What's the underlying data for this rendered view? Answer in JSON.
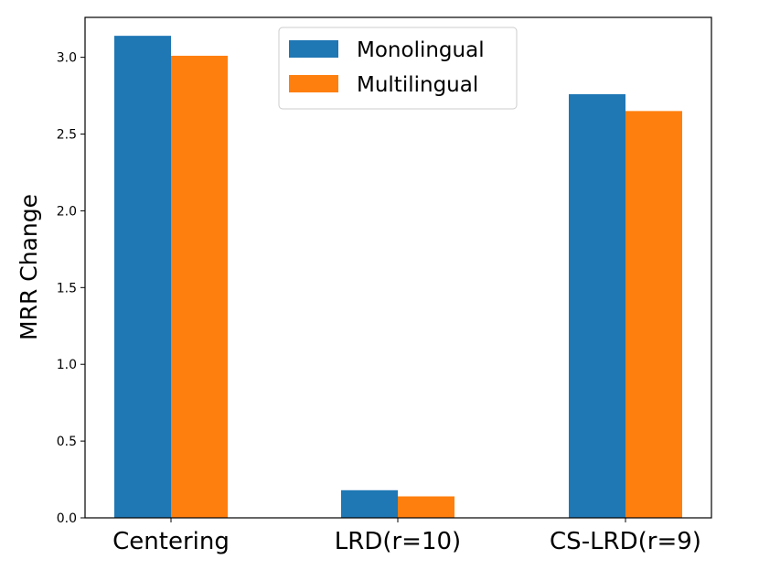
{
  "chart_data": {
    "type": "bar",
    "categories": [
      "Centering",
      "LRD(r=10)",
      "CS-LRD(r=9)"
    ],
    "series": [
      {
        "name": "Monolingual",
        "color": "#1f77b4",
        "values": [
          3.14,
          0.18,
          2.76
        ]
      },
      {
        "name": "Multilingual",
        "color": "#ff7f0e",
        "values": [
          3.01,
          0.14,
          2.65
        ]
      }
    ],
    "xlabel": "",
    "ylabel": "MRR Change",
    "ylim": [
      0,
      3.26
    ],
    "yticks": [
      "0.0",
      "0.5",
      "1.0",
      "1.5",
      "2.0",
      "2.5",
      "3.0"
    ],
    "grid": false,
    "legend_position": "top-center"
  }
}
